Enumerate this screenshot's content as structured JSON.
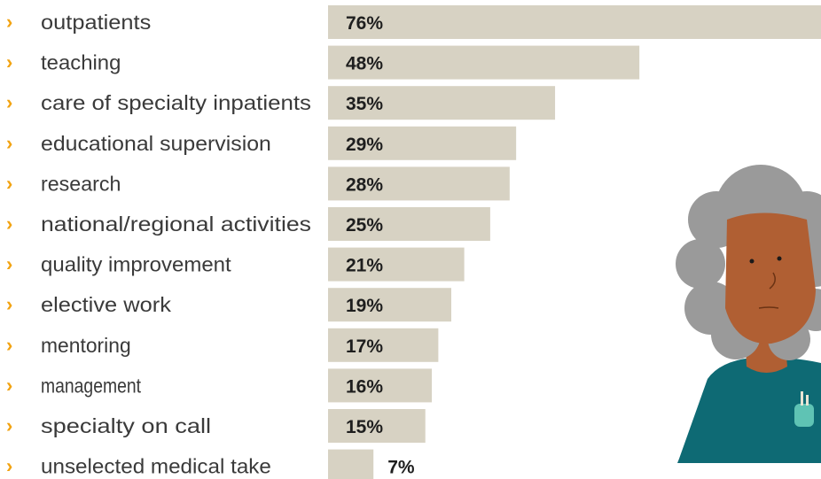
{
  "colors": {
    "bar": "#d7d2c3",
    "chevron": "#f2a311",
    "label_text": "#3a3a3a",
    "value_text": "#1e1e1e",
    "hair": "#9a9a9a",
    "skin": "#b05f33",
    "tunic": "#0e6a74"
  },
  "chart_data": {
    "type": "bar",
    "orientation": "horizontal",
    "categories": [
      "outpatients",
      "teaching",
      "care of specialty inpatients",
      "educational supervision",
      "research",
      "national/regional activities",
      "quality improvement",
      "elective work",
      "mentoring",
      "management",
      "specialty on call",
      "unselected medical take"
    ],
    "values": [
      76,
      48,
      35,
      29,
      28,
      25,
      21,
      19,
      17,
      16,
      15,
      7
    ],
    "value_labels": [
      "76%",
      "48%",
      "35%",
      "29%",
      "28%",
      "25%",
      "21%",
      "19%",
      "17%",
      "16%",
      "15%",
      "7%"
    ],
    "bullet": "›",
    "unit": "%",
    "xlim": [
      0,
      76
    ],
    "grid": false,
    "legend": "none"
  },
  "illustration": {
    "icon": "doctor-avatar-icon"
  }
}
